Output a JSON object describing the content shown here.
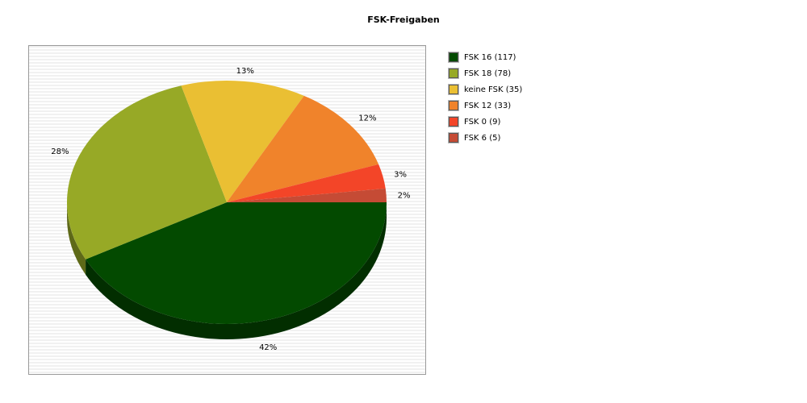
{
  "chart_data": {
    "type": "pie",
    "title": "FSK-Freigaben",
    "slices": [
      {
        "label": "FSK 16 (117)",
        "value": 117,
        "percent_label": "42%",
        "color": "#034a00"
      },
      {
        "label": "FSK 18 (78)",
        "value": 78,
        "percent_label": "28%",
        "color": "#97a926"
      },
      {
        "label": "keine FSK (35)",
        "value": 35,
        "percent_label": "13%",
        "color": "#eabf33"
      },
      {
        "label": "FSK 12 (33)",
        "value": 33,
        "percent_label": "12%",
        "color": "#f0832b"
      },
      {
        "label": "FSK 0 (9)",
        "value": 9,
        "percent_label": "3%",
        "color": "#f34528"
      },
      {
        "label": "FSK 6 (5)",
        "value": 5,
        "percent_label": "2%",
        "color": "#c54b35"
      }
    ],
    "legend_position": "right",
    "style": "3d"
  }
}
